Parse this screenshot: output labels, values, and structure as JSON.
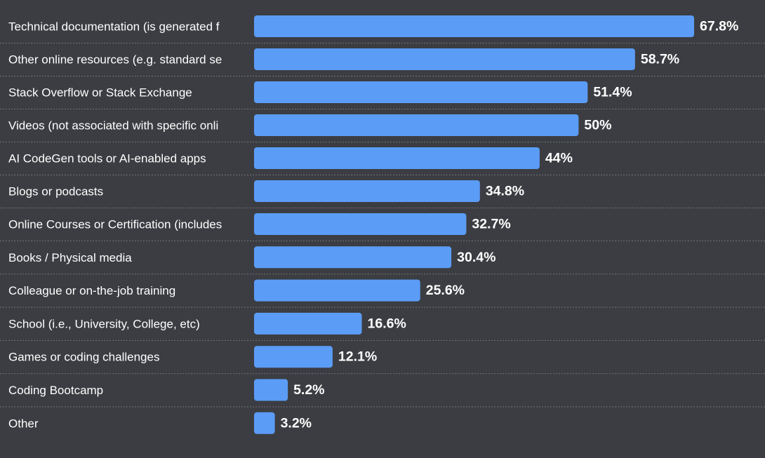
{
  "chart_data": {
    "type": "bar",
    "orientation": "horizontal",
    "categories": [
      "Technical documentation (is generated f",
      "Other online resources (e.g. standard se",
      "Stack Overflow or Stack Exchange",
      "Videos (not associated with specific onli",
      "AI CodeGen tools or AI-enabled apps",
      "Blogs or podcasts",
      "Online Courses or Certification (includes",
      "Books / Physical media",
      "Colleague or on-the-job training",
      "School (i.e., University, College, etc)",
      "Games or coding challenges",
      "Coding Bootcamp",
      "Other"
    ],
    "values": [
      67.8,
      58.7,
      51.4,
      50,
      44,
      34.8,
      32.7,
      30.4,
      25.6,
      16.6,
      12.1,
      5.2,
      3.2
    ],
    "value_labels": [
      "67.8%",
      "58.7%",
      "51.4%",
      "50%",
      "44%",
      "34.8%",
      "32.7%",
      "30.4%",
      "25.6%",
      "16.6%",
      "12.1%",
      "5.2%",
      "3.2%"
    ],
    "title": "",
    "xlabel": "",
    "ylabel": "",
    "xlim": [
      0,
      67.8
    ],
    "grid": "dotted row separators",
    "legend": "none",
    "colors": {
      "background": "#3b3d42",
      "bar": "#5b9cf6",
      "text": "#ffffff",
      "separator": "#707378"
    }
  }
}
